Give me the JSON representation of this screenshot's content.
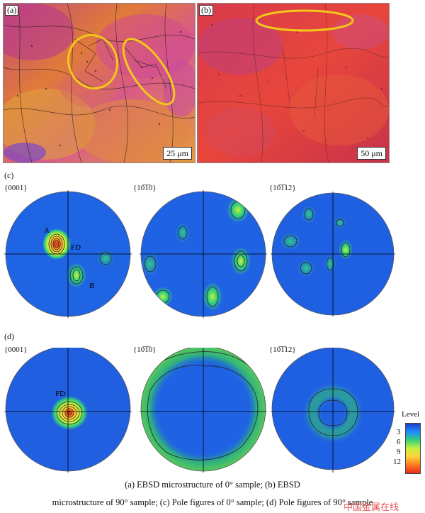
{
  "figure": {
    "panel_a": {
      "label": "(a)",
      "scale_bar": "25 μm"
    },
    "panel_b": {
      "label": "(b)",
      "scale_bar": "50 μm"
    },
    "row_c": {
      "label": "(c)",
      "plots": [
        {
          "title": "{0001}"
        },
        {
          "title": "{10̅1̅0}"
        },
        {
          "title": "{10̅1̅12}"
        }
      ],
      "annotations": {
        "a": "A",
        "b": "B",
        "fd": "FD"
      }
    },
    "row_d": {
      "label": "(d)",
      "plots": [
        {
          "title": "{0001}"
        },
        {
          "title": "{10̅1̅0}"
        },
        {
          "title": "{10̅1̅12}"
        }
      ],
      "annotations": {
        "fd": "FD"
      }
    },
    "legend": {
      "title": "Level",
      "ticks": [
        "3",
        "6",
        "9",
        "12"
      ],
      "colors": [
        "#1e3cc8",
        "#1e8cff",
        "#33d27a",
        "#c8f03c",
        "#ffd23c",
        "#ff7a1e",
        "#e6281e"
      ]
    },
    "caption": {
      "line1": "(a) EBSD microstructure of 0° sample; (b) EBSD",
      "line2": "microstructure of 90° sample; (c) Pole figures of 0° sample; (d) Pole figures of 90° sample"
    },
    "watermark": "中国金属在线"
  }
}
